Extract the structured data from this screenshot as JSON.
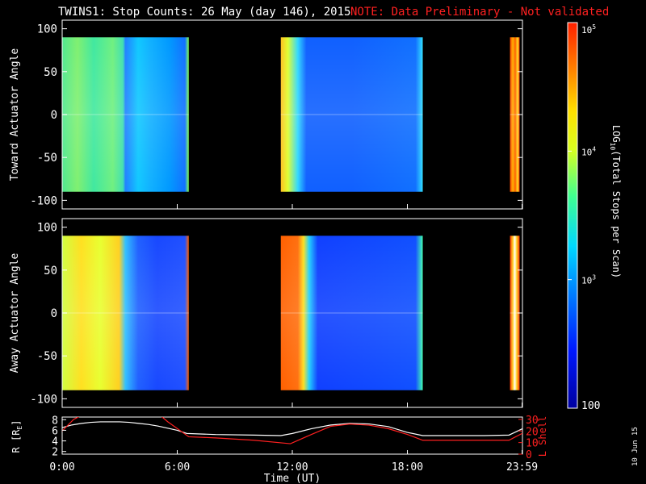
{
  "header": {
    "title": "TWINS1: Stop Counts: 26 May (day 146), 2015",
    "note": "NOTE: Data Preliminary - Not validated"
  },
  "side_date": "10 Jun 15",
  "colors": {
    "background": "#000000",
    "axes": "#ffffff",
    "note": "#ff2020",
    "r_line": "#ffffff",
    "lshell_line": "#ff2020"
  },
  "chart_data": [
    {
      "type": "heatmap",
      "ylabel": "Toward Actuator Angle",
      "ylim": [
        -110,
        110
      ],
      "yticks": [
        100,
        50,
        0,
        -50,
        -100
      ],
      "xlim_hours": [
        0,
        24
      ],
      "segments_hours": [
        [
          0,
          6.6
        ],
        [
          11.4,
          18.8
        ],
        [
          23.35,
          23.85
        ]
      ],
      "level_description": "mostly ~10^3 (cyan/blue) with green-yellow early, red near 23:59"
    },
    {
      "type": "heatmap",
      "ylabel": "Away Actuator Angle",
      "ylim": [
        -110,
        110
      ],
      "yticks": [
        100,
        50,
        0,
        -50,
        -100
      ],
      "xlim_hours": [
        0,
        24
      ],
      "segments_hours": [
        [
          0,
          6.6
        ],
        [
          11.4,
          18.8
        ],
        [
          23.35,
          23.85
        ]
      ],
      "level_description": "yellow/orange early, blue mid-day, orange band near 11:30, red near 23:59"
    },
    {
      "type": "line",
      "ylabel_left": "R [R",
      "ylabel_left_sub": "E",
      "ylabel_right": "L Shell",
      "yticks_left": [
        8,
        6,
        4,
        2
      ],
      "yticks_right": [
        30,
        20,
        10,
        0
      ],
      "ylim_left": [
        1.5,
        8.5
      ],
      "ylim_right": [
        0,
        32
      ],
      "xticks": [
        "0:00",
        "6:00",
        "12:00",
        "18:00",
        "23:59"
      ],
      "xtick_hours": [
        0,
        6,
        12,
        18,
        23.98
      ],
      "xlabel": "Time (UT)",
      "series": [
        {
          "name": "R",
          "x": [
            0,
            0.5,
            1,
            1.5,
            2,
            2.5,
            3,
            3.5,
            4,
            4.5,
            5,
            5.5,
            6,
            6.5,
            8,
            10,
            11.4,
            12,
            13,
            14,
            15,
            16,
            17,
            18,
            18.8,
            20,
            22,
            23.3,
            24
          ],
          "y": [
            6.5,
            7.0,
            7.3,
            7.5,
            7.6,
            7.6,
            7.6,
            7.5,
            7.3,
            7.1,
            6.8,
            6.4,
            6.0,
            5.4,
            5.2,
            5.1,
            5.0,
            5.4,
            6.3,
            7.0,
            7.3,
            7.2,
            6.7,
            5.6,
            5.0,
            5.0,
            5.0,
            5.1,
            6.3
          ]
        },
        {
          "name": "L Shell",
          "x": [
            0,
            0.6,
            1.2,
            5.0,
            5.5,
            6.6,
            8.0,
            10.0,
            11.9,
            13.0,
            14.0,
            15.0,
            16.0,
            17.0,
            18.0,
            18.8,
            20.0,
            22.0,
            23.3,
            24.0
          ],
          "y": [
            20,
            30,
            35,
            35,
            28,
            15,
            14,
            12,
            9,
            17,
            24,
            26,
            25,
            22,
            17,
            12,
            12,
            12,
            12,
            18
          ]
        }
      ]
    }
  ],
  "colorbar": {
    "label": "LOG",
    "label_sub": "10",
    "label_rest": "(Total Stops per Scan)",
    "ticks": [
      "10",
      "10",
      "10",
      "100"
    ],
    "tick_sup": [
      "5",
      "4",
      "3",
      ""
    ],
    "tick_values": [
      100000,
      10000,
      1000,
      100
    ],
    "range": [
      100,
      100000
    ]
  }
}
